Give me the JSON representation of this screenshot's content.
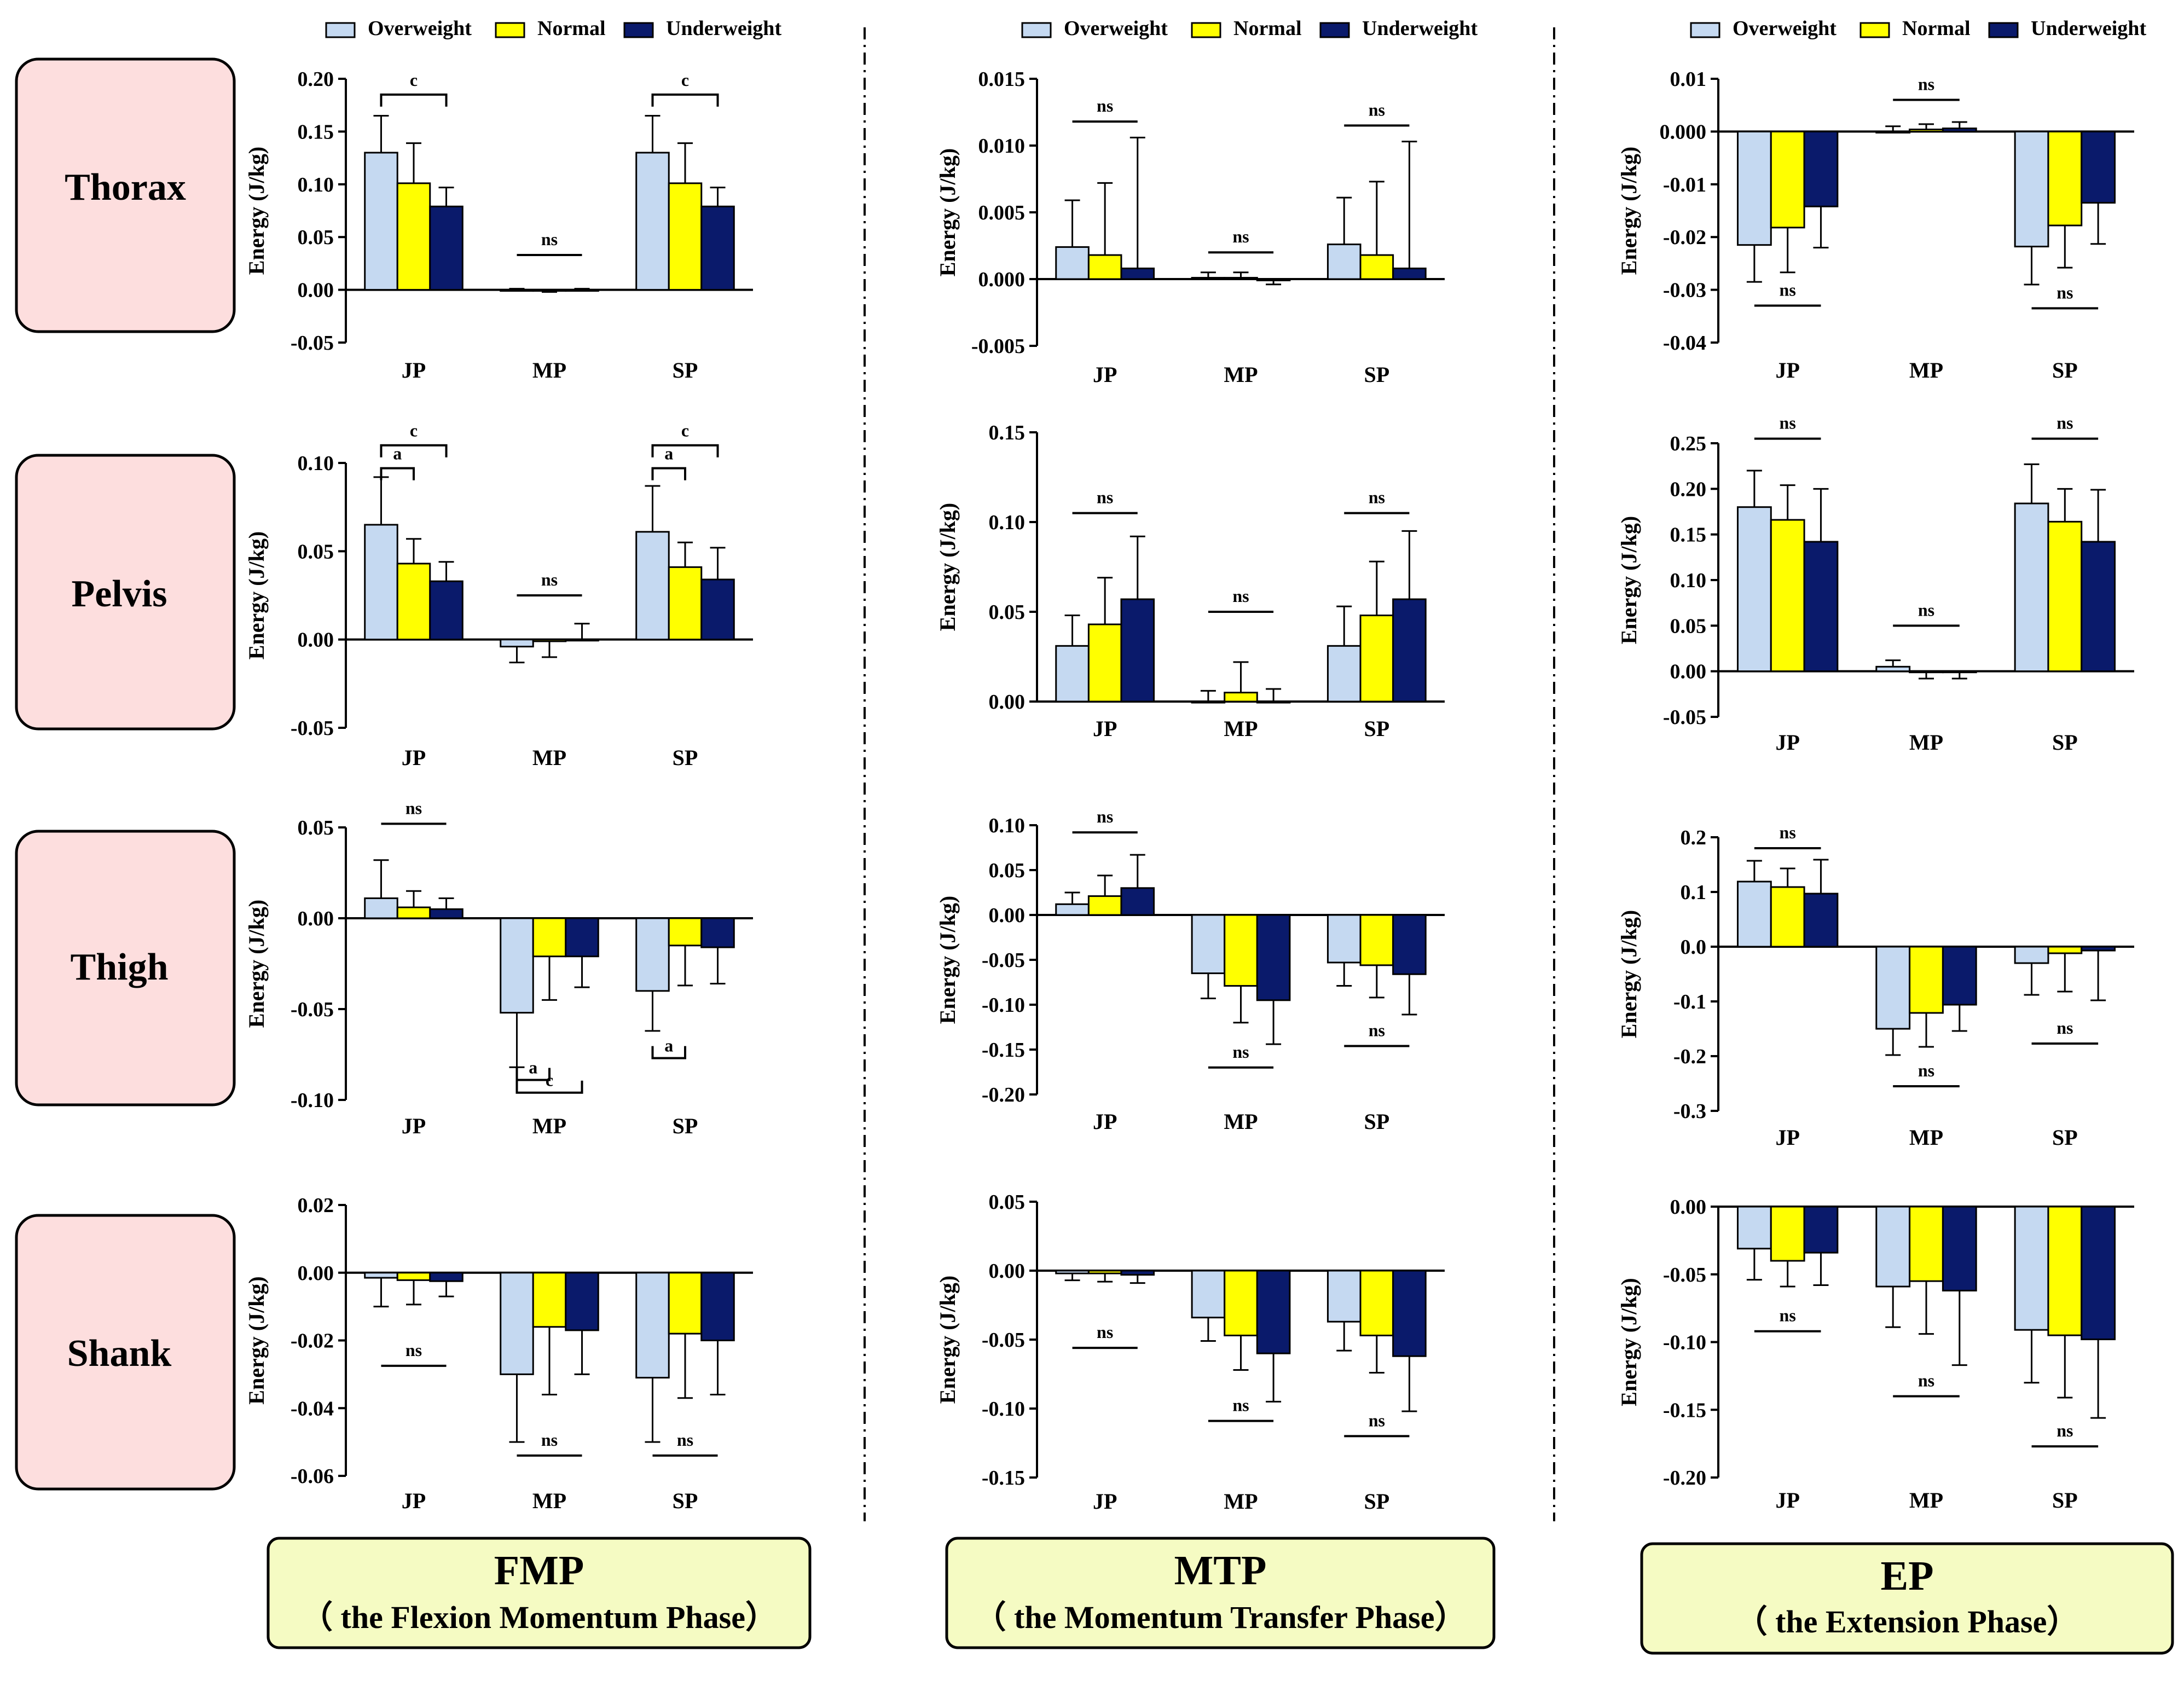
{
  "colors": {
    "overweight": "#C5D9F1",
    "normal": "#FFFF00",
    "underweight": "#0A1A6B",
    "region_box": "#FDDEDE",
    "phase_box": "#F5FBC3",
    "axis": "#000000"
  },
  "legend": [
    "Overweight",
    "Normal",
    "Underweight"
  ],
  "regions": [
    "Thorax",
    "Pelvis",
    "Thigh",
    "Shank"
  ],
  "phases": [
    {
      "title": "FMP",
      "subtitle": "（ the Flexion Momentum Phase）"
    },
    {
      "title": "MTP",
      "subtitle": "（ the Momentum Transfer Phase）"
    },
    {
      "title": "EP",
      "subtitle": "（ the Extension Phase）"
    }
  ],
  "chart_data": [
    {
      "type": "bar",
      "id": "thorax_fmp",
      "ylabel": "Energy (J/kg)",
      "categories": [
        "JP",
        "MP",
        "SP"
      ],
      "ylim": [
        -0.05,
        0.2
      ],
      "yticks": [
        -0.05,
        0,
        0.05,
        0.1,
        0.15,
        0.2
      ],
      "tick_labels": [
        "-0.05",
        "0.00",
        "0.05",
        "0.10",
        "0.15",
        "0.20"
      ],
      "series": [
        {
          "name": "Overweight",
          "values": [
            0.13,
            0.0,
            0.13
          ],
          "errors": [
            0.035,
            0.001,
            0.035
          ]
        },
        {
          "name": "Normal",
          "values": [
            0.101,
            -0.001,
            0.101
          ],
          "errors": [
            0.038,
            0.001,
            0.038
          ]
        },
        {
          "name": "Underweight",
          "values": [
            0.079,
            0.0,
            0.079
          ],
          "errors": [
            0.018,
            0.001,
            0.018
          ]
        }
      ],
      "annotations": [
        {
          "text": "c",
          "cat": 0,
          "from": 0,
          "to": 2,
          "y": 0.185
        },
        {
          "text": "ns",
          "cat": 1,
          "from": 0,
          "to": 2,
          "y": 0.033
        },
        {
          "text": "c",
          "cat": 2,
          "from": 0,
          "to": 2,
          "y": 0.185
        }
      ]
    },
    {
      "type": "bar",
      "id": "thorax_mtp",
      "ylabel": "Energy (J/kg)",
      "categories": [
        "JP",
        "MP",
        "SP"
      ],
      "ylim": [
        -0.005,
        0.015
      ],
      "yticks": [
        -0.005,
        0,
        0.005,
        0.01,
        0.015
      ],
      "tick_labels": [
        "-0.005",
        "0.000",
        "0.005",
        "0.010",
        "0.015"
      ],
      "series": [
        {
          "name": "Overweight",
          "values": [
            0.0024,
            0.0001,
            0.0026
          ],
          "errors": [
            0.0035,
            0.0004,
            0.0035
          ]
        },
        {
          "name": "Normal",
          "values": [
            0.0018,
            0.0001,
            0.0018
          ],
          "errors": [
            0.0054,
            0.0004,
            0.0055
          ]
        },
        {
          "name": "Underweight",
          "values": [
            0.0008,
            -0.0001,
            0.0008
          ],
          "errors": [
            0.0098,
            0.0003,
            0.0095
          ]
        }
      ],
      "annotations": [
        {
          "text": "ns",
          "cat": 0,
          "from": 0,
          "to": 2,
          "y": 0.0118
        },
        {
          "text": "ns",
          "cat": 1,
          "from": 0,
          "to": 2,
          "y": 0.002
        },
        {
          "text": "ns",
          "cat": 2,
          "from": 0,
          "to": 2,
          "y": 0.0115
        }
      ]
    },
    {
      "type": "bar",
      "id": "thorax_ep",
      "ylabel": "Energy (J/kg)",
      "categories": [
        "JP",
        "MP",
        "SP"
      ],
      "ylim": [
        -0.04,
        0.01
      ],
      "yticks": [
        -0.04,
        -0.03,
        -0.02,
        -0.01,
        0,
        0.01
      ],
      "tick_labels": [
        "-0.04",
        "-0.03",
        "-0.02",
        "-0.01",
        "0.000",
        "0.01"
      ],
      "series": [
        {
          "name": "Overweight",
          "values": [
            -0.0215,
            0.0,
            -0.0218
          ],
          "errors": [
            0.007,
            0.001,
            0.0072
          ]
        },
        {
          "name": "Normal",
          "values": [
            -0.0182,
            0.0004,
            -0.0178
          ],
          "errors": [
            0.0085,
            0.001,
            0.008
          ]
        },
        {
          "name": "Underweight",
          "values": [
            -0.0142,
            0.0006,
            -0.0135
          ],
          "errors": [
            0.0078,
            0.0012,
            0.0078
          ]
        }
      ],
      "annotations": [
        {
          "text": "ns",
          "cat": 0,
          "from": 0,
          "to": 2,
          "y": -0.033
        },
        {
          "text": "ns",
          "cat": 1,
          "from": 0,
          "to": 2,
          "y": 0.006
        },
        {
          "text": "ns",
          "cat": 2,
          "from": 0,
          "to": 2,
          "y": -0.0335
        }
      ]
    },
    {
      "type": "bar",
      "id": "pelvis_fmp",
      "ylabel": "Energy (J/kg)",
      "categories": [
        "JP",
        "MP",
        "SP"
      ],
      "ylim": [
        -0.05,
        0.1
      ],
      "yticks": [
        -0.05,
        0,
        0.05,
        0.1
      ],
      "tick_labels": [
        "-0.05",
        "0.00",
        "0.05",
        "0.10"
      ],
      "series": [
        {
          "name": "Overweight",
          "values": [
            0.065,
            -0.004,
            0.061
          ],
          "errors": [
            0.027,
            0.009,
            0.026
          ]
        },
        {
          "name": "Normal",
          "values": [
            0.043,
            -0.001,
            0.041
          ],
          "errors": [
            0.014,
            0.009,
            0.014
          ]
        },
        {
          "name": "Underweight",
          "values": [
            0.033,
            0.0,
            0.034
          ],
          "errors": [
            0.011,
            0.009,
            0.018
          ]
        }
      ],
      "annotations": [
        {
          "text": "c",
          "cat": 0,
          "from": 0,
          "to": 2,
          "y": 0.11
        },
        {
          "text": "a",
          "cat": 0,
          "from": 0,
          "to": 1,
          "y": 0.097
        },
        {
          "text": "ns",
          "cat": 1,
          "from": 0,
          "to": 2,
          "y": 0.025
        },
        {
          "text": "c",
          "cat": 2,
          "from": 0,
          "to": 2,
          "y": 0.11
        },
        {
          "text": "a",
          "cat": 2,
          "from": 0,
          "to": 1,
          "y": 0.097
        }
      ]
    },
    {
      "type": "bar",
      "id": "pelvis_mtp",
      "ylabel": "Energy (J/kg)",
      "categories": [
        "JP",
        "MP",
        "SP"
      ],
      "ylim": [
        0,
        0.15
      ],
      "yticks": [
        0,
        0.05,
        0.1,
        0.15
      ],
      "tick_labels": [
        "0.00",
        "0.05",
        "0.10",
        "0.15"
      ],
      "series": [
        {
          "name": "Overweight",
          "values": [
            0.031,
            0.0,
            0.031
          ],
          "errors": [
            0.017,
            0.006,
            0.022
          ]
        },
        {
          "name": "Normal",
          "values": [
            0.043,
            0.005,
            0.048
          ],
          "errors": [
            0.026,
            0.017,
            0.03
          ]
        },
        {
          "name": "Underweight",
          "values": [
            0.057,
            0.0,
            0.057
          ],
          "errors": [
            0.035,
            0.007,
            0.038
          ]
        }
      ],
      "annotations": [
        {
          "text": "ns",
          "cat": 0,
          "from": 0,
          "to": 2,
          "y": 0.105
        },
        {
          "text": "ns",
          "cat": 1,
          "from": 0,
          "to": 2,
          "y": 0.05
        },
        {
          "text": "ns",
          "cat": 2,
          "from": 0,
          "to": 2,
          "y": 0.105
        }
      ]
    },
    {
      "type": "bar",
      "id": "pelvis_ep",
      "ylabel": "Energy (J/kg)",
      "categories": [
        "JP",
        "MP",
        "SP"
      ],
      "ylim": [
        -0.05,
        0.25
      ],
      "yticks": [
        -0.05,
        0,
        0.05,
        0.1,
        0.15,
        0.2,
        0.25
      ],
      "tick_labels": [
        "-0.05",
        "0.00",
        "0.05",
        "0.10",
        "0.15",
        "0.20",
        "0.25"
      ],
      "series": [
        {
          "name": "Overweight",
          "values": [
            0.18,
            0.005,
            0.184
          ],
          "errors": [
            0.04,
            0.007,
            0.043
          ]
        },
        {
          "name": "Normal",
          "values": [
            0.166,
            -0.001,
            0.164
          ],
          "errors": [
            0.038,
            0.007,
            0.036
          ]
        },
        {
          "name": "Underweight",
          "values": [
            0.142,
            -0.001,
            0.142
          ],
          "errors": [
            0.058,
            0.007,
            0.057
          ]
        }
      ],
      "annotations": [
        {
          "text": "ns",
          "cat": 0,
          "from": 0,
          "to": 2,
          "y": 0.255
        },
        {
          "text": "ns",
          "cat": 1,
          "from": 0,
          "to": 2,
          "y": 0.05
        },
        {
          "text": "ns",
          "cat": 2,
          "from": 0,
          "to": 2,
          "y": 0.255
        }
      ]
    },
    {
      "type": "bar",
      "id": "thigh_fmp",
      "ylabel": "Energy (J/kg)",
      "categories": [
        "JP",
        "MP",
        "SP"
      ],
      "ylim": [
        -0.1,
        0.05
      ],
      "yticks": [
        -0.1,
        -0.05,
        0,
        0.05
      ],
      "tick_labels": [
        "-0.10",
        "-0.05",
        "0.00",
        "0.05"
      ],
      "series": [
        {
          "name": "Overweight",
          "values": [
            0.011,
            -0.052,
            -0.04
          ],
          "errors": [
            0.021,
            0.03,
            0.022
          ]
        },
        {
          "name": "Normal",
          "values": [
            0.006,
            -0.021,
            -0.015
          ],
          "errors": [
            0.009,
            0.024,
            0.022
          ]
        },
        {
          "name": "Underweight",
          "values": [
            0.005,
            -0.021,
            -0.016
          ],
          "errors": [
            0.006,
            0.017,
            0.02
          ]
        }
      ],
      "annotations": [
        {
          "text": "ns",
          "cat": 0,
          "from": 0,
          "to": 2,
          "y": 0.052
        },
        {
          "text": "a",
          "cat": 1,
          "from": 0,
          "to": 1,
          "y": -0.089,
          "down": true
        },
        {
          "text": "c",
          "cat": 1,
          "from": 0,
          "to": 2,
          "y": -0.096,
          "down": true
        },
        {
          "text": "a",
          "cat": 2,
          "from": 0,
          "to": 1,
          "y": -0.077,
          "down": true
        }
      ]
    },
    {
      "type": "bar",
      "id": "thigh_mtp",
      "ylabel": "Energy (J/kg)",
      "categories": [
        "JP",
        "MP",
        "SP"
      ],
      "ylim": [
        -0.2,
        0.1
      ],
      "yticks": [
        -0.2,
        -0.15,
        -0.1,
        -0.05,
        0,
        0.05,
        0.1
      ],
      "tick_labels": [
        "-0.20",
        "-0.15",
        "-0.10",
        "-0.05",
        "0.00",
        "0.05",
        "0.10"
      ],
      "series": [
        {
          "name": "Overweight",
          "values": [
            0.012,
            -0.065,
            -0.053
          ],
          "errors": [
            0.013,
            0.028,
            0.026
          ]
        },
        {
          "name": "Normal",
          "values": [
            0.021,
            -0.079,
            -0.056
          ],
          "errors": [
            0.023,
            0.041,
            0.036
          ]
        },
        {
          "name": "Underweight",
          "values": [
            0.03,
            -0.095,
            -0.066
          ],
          "errors": [
            0.037,
            0.049,
            0.045
          ]
        }
      ],
      "annotations": [
        {
          "text": "ns",
          "cat": 0,
          "from": 0,
          "to": 2,
          "y": 0.092
        },
        {
          "text": "ns",
          "cat": 1,
          "from": 0,
          "to": 2,
          "y": -0.17
        },
        {
          "text": "ns",
          "cat": 2,
          "from": 0,
          "to": 2,
          "y": -0.146
        }
      ]
    },
    {
      "type": "bar",
      "id": "thigh_ep",
      "ylabel": "Energy (J/kg)",
      "categories": [
        "JP",
        "MP",
        "SP"
      ],
      "ylim": [
        -0.3,
        0.2
      ],
      "yticks": [
        -0.3,
        -0.2,
        -0.1,
        0,
        0.1,
        0.2
      ],
      "tick_labels": [
        "-0.3",
        "-0.2",
        "-0.1",
        "0.0",
        "0.1",
        "0.2"
      ],
      "series": [
        {
          "name": "Overweight",
          "values": [
            0.119,
            -0.15,
            -0.03
          ],
          "errors": [
            0.038,
            0.048,
            0.058
          ]
        },
        {
          "name": "Normal",
          "values": [
            0.109,
            -0.121,
            -0.012
          ],
          "errors": [
            0.034,
            0.062,
            0.07
          ]
        },
        {
          "name": "Underweight",
          "values": [
            0.097,
            -0.106,
            -0.007
          ],
          "errors": [
            0.062,
            0.048,
            0.091
          ]
        }
      ],
      "annotations": [
        {
          "text": "ns",
          "cat": 0,
          "from": 0,
          "to": 2,
          "y": 0.18
        },
        {
          "text": "ns",
          "cat": 1,
          "from": 0,
          "to": 2,
          "y": -0.255
        },
        {
          "text": "ns",
          "cat": 2,
          "from": 0,
          "to": 2,
          "y": -0.177
        }
      ]
    },
    {
      "type": "bar",
      "id": "shank_fmp",
      "ylabel": "Energy (J/kg)",
      "categories": [
        "JP",
        "MP",
        "SP"
      ],
      "ylim": [
        -0.06,
        0.02
      ],
      "yticks": [
        -0.06,
        -0.04,
        -0.02,
        0,
        0.02
      ],
      "tick_labels": [
        "-0.06",
        "-0.04",
        "-0.02",
        "0.00",
        "0.02"
      ],
      "series": [
        {
          "name": "Overweight",
          "values": [
            -0.0015,
            -0.03,
            -0.031
          ],
          "errors": [
            0.0085,
            0.02,
            0.019
          ]
        },
        {
          "name": "Normal",
          "values": [
            -0.0022,
            -0.016,
            -0.018
          ],
          "errors": [
            0.0072,
            0.02,
            0.019
          ]
        },
        {
          "name": "Underweight",
          "values": [
            -0.0025,
            -0.017,
            -0.02
          ],
          "errors": [
            0.0045,
            0.013,
            0.016
          ]
        }
      ],
      "annotations": [
        {
          "text": "ns",
          "cat": 0,
          "from": 0,
          "to": 2,
          "y": -0.0275
        },
        {
          "text": "ns",
          "cat": 1,
          "from": 0,
          "to": 2,
          "y": -0.054
        },
        {
          "text": "ns",
          "cat": 2,
          "from": 0,
          "to": 2,
          "y": -0.054
        }
      ]
    },
    {
      "type": "bar",
      "id": "shank_mtp",
      "ylabel": "Energy (J/kg)",
      "categories": [
        "JP",
        "MP",
        "SP"
      ],
      "ylim": [
        -0.15,
        0.05
      ],
      "yticks": [
        -0.15,
        -0.1,
        -0.05,
        0,
        0.05
      ],
      "tick_labels": [
        "-0.15",
        "-0.10",
        "-0.05",
        "0.00",
        "0.05"
      ],
      "series": [
        {
          "name": "Overweight",
          "values": [
            -0.002,
            -0.034,
            -0.037
          ],
          "errors": [
            0.005,
            0.017,
            0.021
          ]
        },
        {
          "name": "Normal",
          "values": [
            -0.002,
            -0.047,
            -0.047
          ],
          "errors": [
            0.006,
            0.025,
            0.027
          ]
        },
        {
          "name": "Underweight",
          "values": [
            -0.003,
            -0.06,
            -0.062
          ],
          "errors": [
            0.006,
            0.035,
            0.04
          ]
        }
      ],
      "annotations": [
        {
          "text": "ns",
          "cat": 0,
          "from": 0,
          "to": 2,
          "y": -0.056
        },
        {
          "text": "ns",
          "cat": 1,
          "from": 0,
          "to": 2,
          "y": -0.109
        },
        {
          "text": "ns",
          "cat": 2,
          "from": 0,
          "to": 2,
          "y": -0.12
        }
      ]
    },
    {
      "type": "bar",
      "id": "shank_ep",
      "ylabel": "Energy (J/kg)",
      "categories": [
        "JP",
        "MP",
        "SP"
      ],
      "ylim": [
        -0.2,
        0
      ],
      "yticks": [
        -0.2,
        -0.15,
        -0.1,
        -0.05,
        0
      ],
      "tick_labels": [
        "-0.20",
        "-0.15",
        "-0.10",
        "-0.05",
        "0.00"
      ],
      "series": [
        {
          "name": "Overweight",
          "values": [
            -0.031,
            -0.059,
            -0.091
          ],
          "errors": [
            0.023,
            0.03,
            0.039
          ]
        },
        {
          "name": "Normal",
          "values": [
            -0.04,
            -0.055,
            -0.095
          ],
          "errors": [
            0.019,
            0.039,
            0.046
          ]
        },
        {
          "name": "Underweight",
          "values": [
            -0.034,
            -0.062,
            -0.098
          ],
          "errors": [
            0.024,
            0.055,
            0.058
          ]
        }
      ],
      "annotations": [
        {
          "text": "ns",
          "cat": 0,
          "from": 0,
          "to": 2,
          "y": -0.092
        },
        {
          "text": "ns",
          "cat": 1,
          "from": 0,
          "to": 2,
          "y": -0.14
        },
        {
          "text": "ns",
          "cat": 2,
          "from": 0,
          "to": 2,
          "y": -0.177
        }
      ]
    }
  ]
}
